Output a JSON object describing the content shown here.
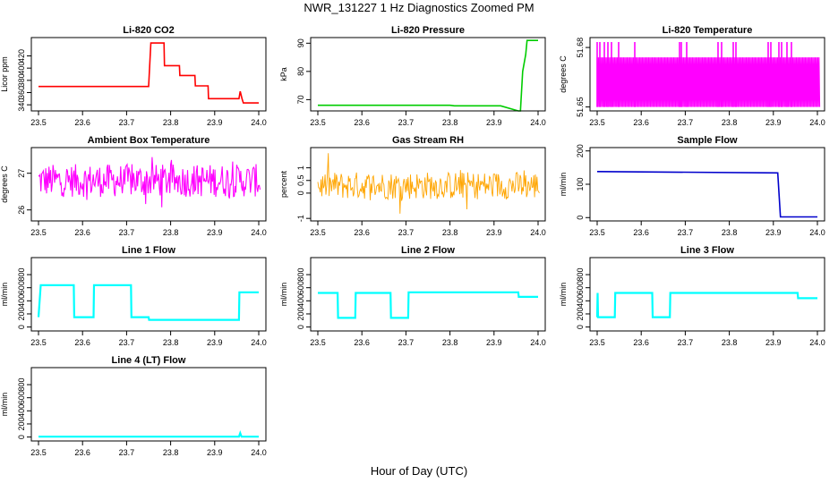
{
  "title": "NWR_131227  1 Hz Diagnostics Zoomed PM",
  "xlabel": "Hour of Day (UTC)",
  "chart_data": [
    {
      "type": "line",
      "title": "Li-820 CO2",
      "ylabel": "Licor ppm",
      "color": "#ff0000",
      "xlim": [
        23.5,
        24.0
      ],
      "ylim": [
        330,
        450
      ],
      "yticks": [
        340,
        360,
        380,
        400,
        420
      ],
      "xticks": [
        "23.5",
        "23.6",
        "23.7",
        "23.8",
        "23.9",
        "24.0"
      ],
      "x": [
        23.5,
        23.75,
        23.755,
        23.785,
        23.786,
        23.82,
        23.821,
        23.855,
        23.856,
        23.885,
        23.886,
        23.955,
        23.958,
        23.962,
        23.965,
        24.0
      ],
      "y": [
        370,
        370,
        441,
        441,
        404,
        404,
        388,
        388,
        371,
        371,
        350,
        350,
        362,
        350,
        343,
        343
      ]
    },
    {
      "type": "line",
      "title": "Li-820 Pressure",
      "ylabel": "kPa",
      "color": "#00cc00",
      "xlim": [
        23.5,
        24.0
      ],
      "ylim": [
        66,
        92
      ],
      "yticks": [
        70,
        80,
        90
      ],
      "xticks": [
        "23.5",
        "23.6",
        "23.7",
        "23.8",
        "23.9",
        "24.0"
      ],
      "x": [
        23.5,
        23.8,
        23.81,
        23.915,
        23.955,
        23.96,
        23.965,
        23.972,
        23.975,
        24.0
      ],
      "y": [
        68,
        68,
        67.8,
        67.8,
        66,
        66,
        80,
        86,
        91,
        91
      ]
    },
    {
      "type": "line",
      "title": "Li-820 Temperature",
      "ylabel": "degrees C",
      "color": "#ff00ff",
      "xlim": [
        23.5,
        24.0
      ],
      "ylim": [
        51.648,
        51.685
      ],
      "yticks": [
        51.65,
        51.68
      ],
      "xticks": [
        "23.5",
        "23.6",
        "23.7",
        "23.8",
        "23.9",
        "24.0"
      ],
      "x": [
        23.5,
        24.0
      ],
      "y": [
        51.65,
        51.675
      ]
    },
    {
      "type": "line",
      "title": "Ambient Box Temperature",
      "ylabel": "degrees C",
      "color": "#ff00ff",
      "xlim": [
        23.5,
        24.0
      ],
      "ylim": [
        25.7,
        27.7
      ],
      "yticks": [
        26.0,
        27.0
      ],
      "xticks": [
        "23.5",
        "23.6",
        "23.7",
        "23.8",
        "23.9",
        "24.0"
      ],
      "x": [
        23.5,
        24.0
      ],
      "y": [
        26.8,
        26.7
      ]
    },
    {
      "type": "line",
      "title": "Gas Stream RH",
      "ylabel": "percent",
      "color": "#ffa500",
      "xlim": [
        23.5,
        24.0
      ],
      "ylim": [
        -1.1,
        1.8
      ],
      "yticks": [
        -1.0,
        0.0,
        0.5,
        1.0
      ],
      "xticks": [
        "23.5",
        "23.6",
        "23.7",
        "23.8",
        "23.9",
        "24.0"
      ],
      "x": [
        23.5,
        24.0
      ],
      "y": [
        0.3,
        0.3
      ]
    },
    {
      "type": "line",
      "title": "Sample Flow",
      "ylabel": "ml/min",
      "color": "#0000cc",
      "xlim": [
        23.5,
        24.0
      ],
      "ylim": [
        -10,
        210
      ],
      "yticks": [
        0,
        100,
        200
      ],
      "xticks": [
        "23.5",
        "23.6",
        "23.7",
        "23.8",
        "23.9",
        "24.0"
      ],
      "x": [
        23.5,
        23.91,
        23.916,
        24.0
      ],
      "y": [
        138,
        134,
        2,
        2
      ]
    },
    {
      "type": "line",
      "title": "Line 1 Flow",
      "ylabel": "ml/min",
      "color": "#00ffff",
      "xlim": [
        23.5,
        24.0
      ],
      "ylim": [
        -60,
        1060
      ],
      "yticks": [
        0,
        200,
        400,
        600,
        800
      ],
      "xticks": [
        "23.5",
        "23.6",
        "23.7",
        "23.8",
        "23.9",
        "24.0"
      ],
      "x": [
        23.5,
        23.505,
        23.58,
        23.581,
        23.625,
        23.626,
        23.71,
        23.711,
        23.75,
        23.751,
        23.955,
        23.956,
        24.0
      ],
      "y": [
        150,
        640,
        640,
        150,
        150,
        640,
        640,
        150,
        150,
        110,
        110,
        530,
        530
      ]
    },
    {
      "type": "line",
      "title": "Line 2 Flow",
      "ylabel": "ml/min",
      "color": "#00ffff",
      "xlim": [
        23.5,
        24.0
      ],
      "ylim": [
        -60,
        1060
      ],
      "yticks": [
        0,
        200,
        400,
        600,
        800
      ],
      "xticks": [
        "23.5",
        "23.6",
        "23.7",
        "23.8",
        "23.9",
        "24.0"
      ],
      "x": [
        23.5,
        23.545,
        23.546,
        23.585,
        23.586,
        23.665,
        23.666,
        23.705,
        23.706,
        23.955,
        23.956,
        24.0
      ],
      "y": [
        520,
        520,
        140,
        140,
        520,
        520,
        140,
        140,
        530,
        530,
        460,
        460
      ]
    },
    {
      "type": "line",
      "title": "Line 3 Flow",
      "ylabel": "ml/min",
      "color": "#00ffff",
      "xlim": [
        23.5,
        24.0
      ],
      "ylim": [
        -60,
        1060
      ],
      "yticks": [
        0,
        200,
        400,
        600,
        800
      ],
      "xticks": [
        "23.5",
        "23.6",
        "23.7",
        "23.8",
        "23.9",
        "24.0"
      ],
      "x": [
        23.5,
        23.501,
        23.502,
        23.54,
        23.541,
        23.625,
        23.626,
        23.665,
        23.666,
        23.955,
        23.956,
        24.0
      ],
      "y": [
        150,
        520,
        150,
        150,
        520,
        520,
        150,
        150,
        520,
        520,
        440,
        440
      ]
    },
    {
      "type": "line",
      "title": "Line 4 (LT) Flow",
      "ylabel": "ml/min",
      "color": "#00ffff",
      "xlim": [
        23.5,
        24.0
      ],
      "ylim": [
        -60,
        1060
      ],
      "yticks": [
        0,
        200,
        400,
        600,
        800
      ],
      "xticks": [
        "23.5",
        "23.6",
        "23.7",
        "23.8",
        "23.9",
        "24.0"
      ],
      "x": [
        23.5,
        23.955,
        23.958,
        23.961,
        24.0
      ],
      "y": [
        5,
        5,
        60,
        5,
        5
      ]
    }
  ]
}
